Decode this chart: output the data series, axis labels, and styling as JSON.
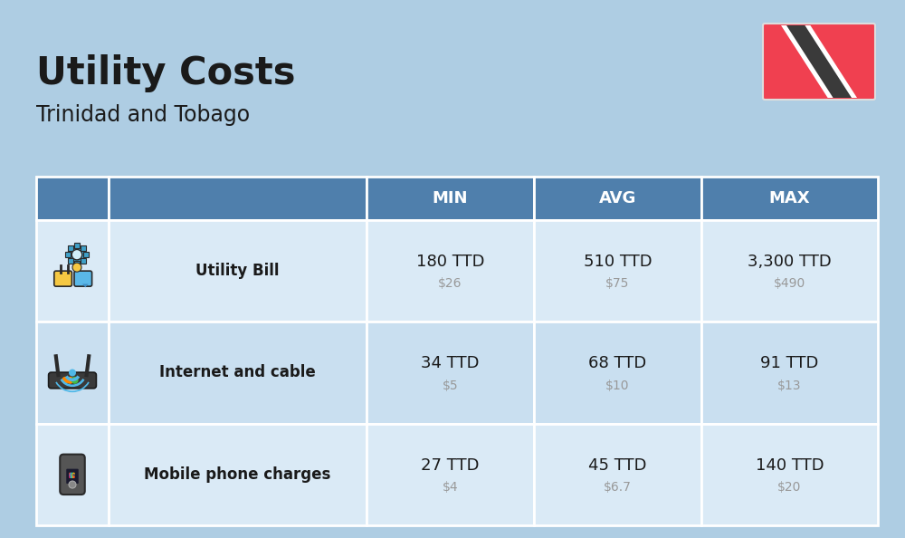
{
  "title": "Utility Costs",
  "subtitle": "Trinidad and Tobago",
  "background_color": "#aecde3",
  "header_bg_color": "#4f7fac",
  "header_text_color": "#ffffff",
  "row_bg_color_odd": "#daeaf6",
  "row_bg_color_even": "#c9dff0",
  "table_border_color": "#ffffff",
  "text_color": "#1a1a1a",
  "usd_color": "#999999",
  "headers": [
    "MIN",
    "AVG",
    "MAX"
  ],
  "rows": [
    {
      "icon_label": "utility",
      "label": "Utility Bill",
      "min_ttd": "180 TTD",
      "min_usd": "$26",
      "avg_ttd": "510 TTD",
      "avg_usd": "$75",
      "max_ttd": "3,300 TTD",
      "max_usd": "$490"
    },
    {
      "icon_label": "internet",
      "label": "Internet and cable",
      "min_ttd": "34 TTD",
      "min_usd": "$5",
      "avg_ttd": "68 TTD",
      "avg_usd": "$10",
      "max_ttd": "91 TTD",
      "max_usd": "$13"
    },
    {
      "icon_label": "mobile",
      "label": "Mobile phone charges",
      "min_ttd": "27 TTD",
      "min_usd": "$4",
      "avg_ttd": "45 TTD",
      "avg_usd": "$6.7",
      "max_ttd": "140 TTD",
      "max_usd": "$20"
    }
  ],
  "flag": {
    "red": "#f04050",
    "black": "#3a3a3a",
    "white": "#ffffff"
  }
}
